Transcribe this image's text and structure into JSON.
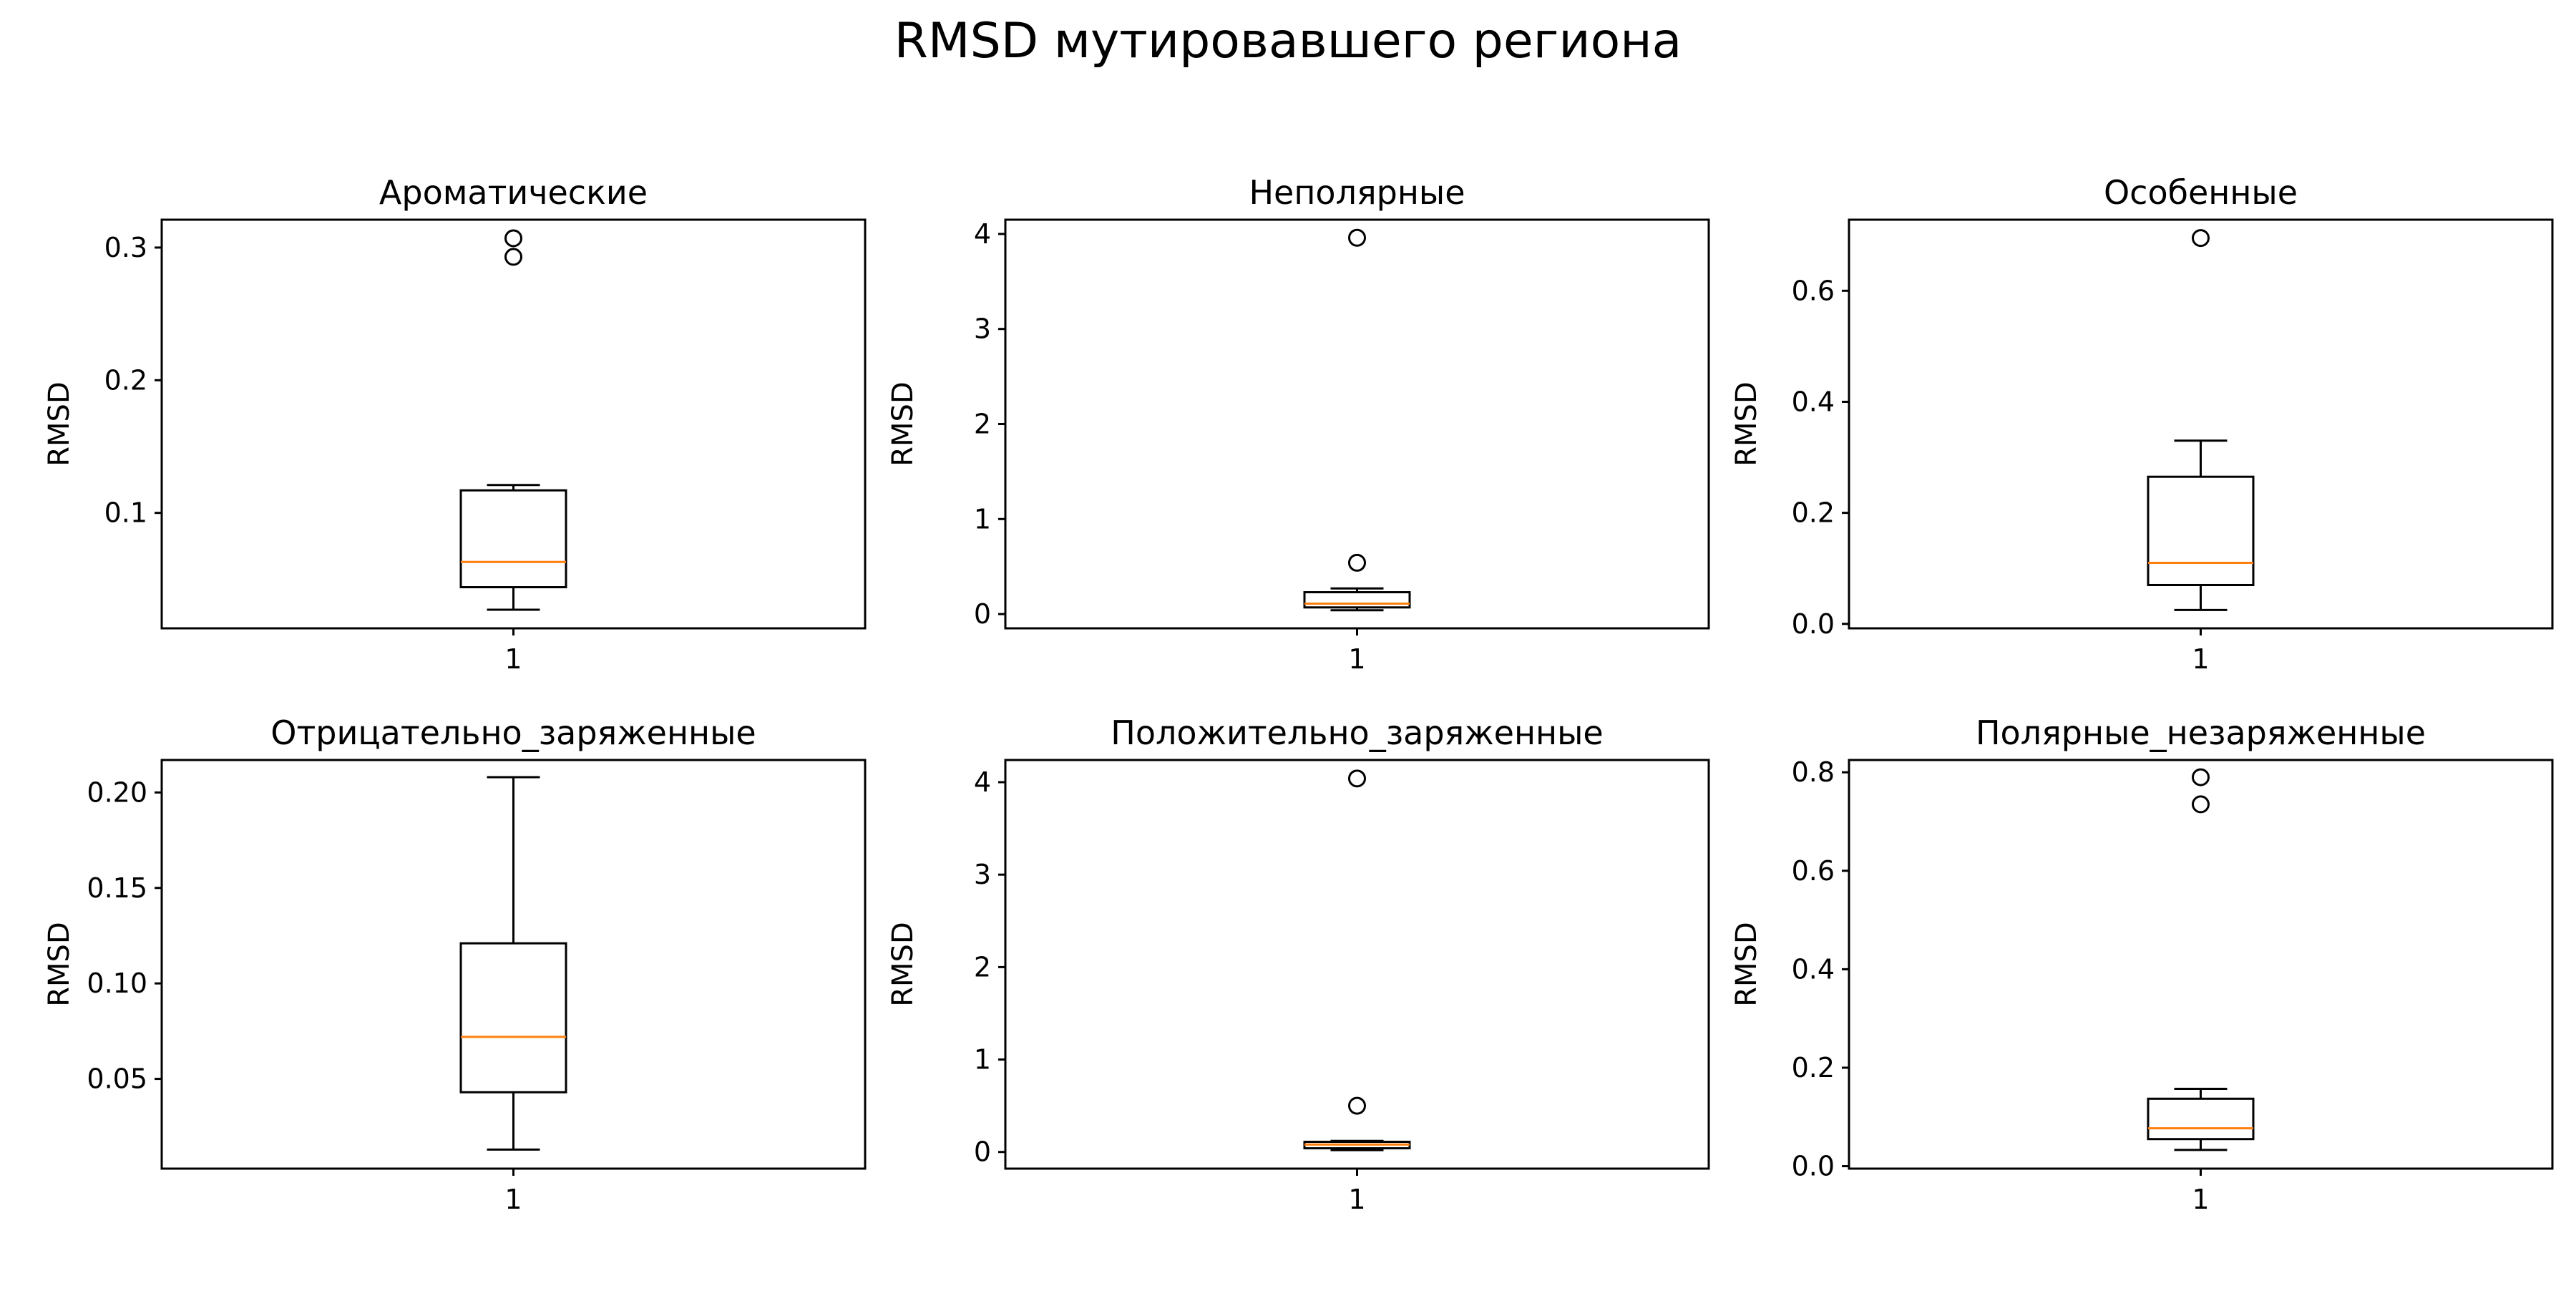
{
  "suptitle": "RMSD мутировавшего региона",
  "colors": {
    "box": "#000000",
    "median": "#ff7f0e",
    "flier": "#000000"
  },
  "chart_data": [
    {
      "type": "boxplot",
      "title": "Ароматические",
      "xlabel": "",
      "ylabel": "RMSD",
      "categories": [
        "1"
      ],
      "ylim": [
        0.013,
        0.321
      ],
      "yticks": [
        0.1,
        0.2,
        0.3
      ],
      "yticklabels": [
        "0.1",
        "0.2",
        "0.3"
      ],
      "box": {
        "whisker_low": 0.027,
        "q1": 0.044,
        "median": 0.063,
        "q3": 0.117,
        "whisker_high": 0.121
      },
      "outliers": [
        0.293,
        0.307
      ]
    },
    {
      "type": "boxplot",
      "title": "Неполярные",
      "xlabel": "",
      "ylabel": "RMSD",
      "categories": [
        "1"
      ],
      "ylim": [
        -0.15,
        4.15
      ],
      "yticks": [
        0,
        1,
        2,
        3,
        4
      ],
      "yticklabels": [
        "0",
        "1",
        "2",
        "3",
        "4"
      ],
      "box": {
        "whisker_low": 0.04,
        "q1": 0.07,
        "median": 0.11,
        "q3": 0.23,
        "whisker_high": 0.27
      },
      "outliers": [
        0.54,
        3.96
      ]
    },
    {
      "type": "boxplot",
      "title": "Особенные",
      "xlabel": "",
      "ylabel": "RMSD",
      "categories": [
        "1"
      ],
      "ylim": [
        -0.008,
        0.728
      ],
      "yticks": [
        0.0,
        0.2,
        0.4,
        0.6
      ],
      "yticklabels": [
        "0.0",
        "0.2",
        "0.4",
        "0.6"
      ],
      "box": {
        "whisker_low": 0.025,
        "q1": 0.07,
        "median": 0.11,
        "q3": 0.265,
        "whisker_high": 0.33
      },
      "outliers": [
        0.695
      ]
    },
    {
      "type": "boxplot",
      "title": "Отрицательно_заряженные",
      "xlabel": "",
      "ylabel": "RMSD",
      "categories": [
        "1"
      ],
      "ylim": [
        0.003,
        0.217
      ],
      "yticks": [
        0.05,
        0.1,
        0.15,
        0.2
      ],
      "yticklabels": [
        "0.05",
        "0.10",
        "0.15",
        "0.20"
      ],
      "box": {
        "whisker_low": 0.013,
        "q1": 0.043,
        "median": 0.072,
        "q3": 0.121,
        "whisker_high": 0.208
      },
      "outliers": []
    },
    {
      "type": "boxplot",
      "title": "Положительно_заряженные",
      "xlabel": "",
      "ylabel": "RMSD",
      "categories": [
        "1"
      ],
      "ylim": [
        -0.18,
        4.24
      ],
      "yticks": [
        0,
        1,
        2,
        3,
        4
      ],
      "yticklabels": [
        "0",
        "1",
        "2",
        "3",
        "4"
      ],
      "box": {
        "whisker_low": 0.02,
        "q1": 0.04,
        "median": 0.08,
        "q3": 0.11,
        "whisker_high": 0.12
      },
      "outliers": [
        0.5,
        4.04
      ]
    },
    {
      "type": "boxplot",
      "title": "Полярные_незаряженные",
      "xlabel": "",
      "ylabel": "RMSD",
      "categories": [
        "1"
      ],
      "ylim": [
        -0.005,
        0.825
      ],
      "yticks": [
        0.0,
        0.2,
        0.4,
        0.6,
        0.8
      ],
      "yticklabels": [
        "0.0",
        "0.2",
        "0.4",
        "0.6",
        "0.8"
      ],
      "box": {
        "whisker_low": 0.033,
        "q1": 0.055,
        "median": 0.077,
        "q3": 0.137,
        "whisker_high": 0.157
      },
      "outliers": [
        0.735,
        0.79
      ]
    }
  ]
}
